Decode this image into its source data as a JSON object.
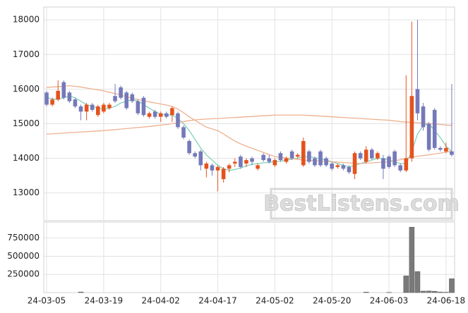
{
  "chart_data": {
    "type": "candlestick",
    "categories": [
      "24-03-05",
      null,
      null,
      null,
      null,
      null,
      null,
      null,
      null,
      null,
      "24-03-19",
      null,
      null,
      null,
      null,
      null,
      null,
      null,
      null,
      null,
      "24-04-02",
      null,
      null,
      null,
      null,
      null,
      null,
      null,
      null,
      null,
      "24-04-17",
      null,
      null,
      null,
      null,
      null,
      null,
      null,
      null,
      null,
      "24-05-02",
      null,
      null,
      null,
      null,
      null,
      null,
      null,
      null,
      null,
      "24-05-20",
      null,
      null,
      null,
      null,
      null,
      null,
      null,
      null,
      null,
      "24-06-03",
      null,
      null,
      null,
      null,
      null,
      null,
      null,
      null,
      null,
      "24-06-18",
      null
    ],
    "open": [
      15900,
      15550,
      15700,
      16200,
      15900,
      15700,
      15500,
      15350,
      15550,
      15250,
      15350,
      15450,
      15800,
      16050,
      15900,
      15850,
      15650,
      15750,
      15200,
      15350,
      15200,
      15300,
      15250,
      15300,
      14900,
      14500,
      14150,
      14200,
      13700,
      13800,
      13650,
      13400,
      13700,
      13850,
      14050,
      13850,
      14000,
      13700,
      14100,
      14000,
      13800,
      14150,
      13900,
      14200,
      14050,
      13800,
      14200,
      14000,
      14200,
      14000,
      13850,
      13750,
      13800,
      13750,
      13550,
      14150,
      13900,
      14250,
      14000,
      14000,
      14050,
      14200,
      13800,
      13650,
      14000,
      16000,
      15500,
      15000,
      15400,
      14300,
      14200,
      14200
    ],
    "high": [
      15950,
      15750,
      16250,
      16250,
      15950,
      15750,
      15550,
      15600,
      15600,
      15550,
      15600,
      15600,
      16150,
      16100,
      15950,
      15900,
      15700,
      15800,
      15350,
      15400,
      15350,
      15350,
      15500,
      15350,
      14950,
      14550,
      14200,
      14250,
      13900,
      13850,
      13800,
      13750,
      13850,
      14000,
      14100,
      14000,
      14050,
      13850,
      14150,
      14100,
      14000,
      14200,
      14050,
      14250,
      14150,
      14600,
      14250,
      14050,
      14250,
      14050,
      13900,
      13850,
      13850,
      13800,
      14200,
      14200,
      14350,
      14300,
      14200,
      14100,
      14100,
      14250,
      13850,
      16400,
      17950,
      18000,
      15600,
      15050,
      15450,
      14350,
      14450,
      16150
    ],
    "low": [
      15500,
      15500,
      15650,
      15700,
      15600,
      15450,
      15100,
      15100,
      15350,
      15200,
      15300,
      15400,
      15600,
      15700,
      15400,
      15600,
      15250,
      15200,
      15150,
      15150,
      15050,
      15150,
      15050,
      14850,
      14550,
      14100,
      14000,
      13650,
      13450,
      13500,
      13050,
      13300,
      13600,
      13750,
      13700,
      13750,
      13800,
      13650,
      13900,
      13850,
      13750,
      13900,
      13850,
      13950,
      14000,
      13750,
      13850,
      13750,
      13750,
      13750,
      13650,
      13700,
      13650,
      13550,
      13400,
      13950,
      13850,
      13950,
      13950,
      13400,
      13700,
      13750,
      13600,
      13600,
      13900,
      15100,
      14800,
      14200,
      14250,
      14200,
      14150,
      14050
    ],
    "close": [
      15550,
      15700,
      15950,
      15750,
      15650,
      15500,
      15350,
      15550,
      15400,
      15500,
      15550,
      15550,
      15650,
      15750,
      15450,
      15650,
      15300,
      15250,
      15300,
      15200,
      15300,
      15200,
      15450,
      14900,
      14600,
      14150,
      14050,
      13800,
      13850,
      13650,
      13750,
      13700,
      13800,
      13900,
      13750,
      13950,
      13900,
      13800,
      13950,
      13900,
      13950,
      13950,
      14000,
      14000,
      14100,
      14500,
      13900,
      13800,
      13800,
      13800,
      13700,
      13800,
      13700,
      13600,
      14150,
      14000,
      14250,
      14000,
      14150,
      13700,
      13750,
      13800,
      13650,
      14000,
      15800,
      15300,
      14900,
      14250,
      14300,
      14250,
      14300,
      14100
    ],
    "up_color": "#e4531d",
    "down_color": "#7479b9",
    "ylim": [
      12200,
      18370
    ],
    "yticks": [
      13000,
      14000,
      15000,
      16000,
      17000,
      18000
    ],
    "grid": true,
    "overlays": [
      {
        "color": "#82d2b8",
        "values": [
          15750,
          15720,
          15700,
          15750,
          15800,
          15750,
          15650,
          15550,
          15500,
          15450,
          15420,
          15450,
          15500,
          15600,
          15650,
          15700,
          15650,
          15550,
          15450,
          15350,
          15280,
          15250,
          15250,
          15150,
          15000,
          14800,
          14550,
          14300,
          14100,
          13950,
          13800,
          13700,
          13650,
          13680,
          13720,
          13780,
          13830,
          13850,
          13870,
          13880,
          13900,
          13920,
          13950,
          13980,
          14000,
          14050,
          14050,
          14020,
          13980,
          13950,
          13900,
          13850,
          13800,
          13750,
          13800,
          13850,
          13900,
          13950,
          14000,
          14000,
          13950,
          13900,
          13850,
          13850,
          14200,
          14700,
          14950,
          15000,
          14800,
          14600,
          14350,
          14200
        ]
      },
      {
        "color": "#eeb08f",
        "values": [
          16050,
          16060,
          16070,
          16080,
          16100,
          16080,
          16060,
          16030,
          16000,
          15980,
          15950,
          15910,
          15870,
          15830,
          15780,
          15740,
          15700,
          15670,
          15630,
          15600,
          15570,
          15540,
          15500,
          15420,
          15320,
          15200,
          15100,
          15000,
          14900,
          14850,
          14800,
          14700,
          14600,
          14500,
          14420,
          14350,
          14290,
          14230,
          14170,
          14110,
          14050,
          14030,
          14010,
          13990,
          13970,
          13950,
          13940,
          13930,
          13920,
          13910,
          13900,
          13890,
          13880,
          13870,
          13860,
          13850,
          13860,
          13870,
          13880,
          13890,
          13900,
          13930,
          13960,
          14000,
          14030,
          14060,
          14080,
          14100,
          14130,
          14150,
          14180,
          14200
        ]
      },
      {
        "color": "#eeb08f",
        "values": [
          14700,
          14710,
          14720,
          14730,
          14740,
          14750,
          14760,
          14770,
          14780,
          14790,
          14800,
          14815,
          14830,
          14845,
          14860,
          14875,
          14890,
          14905,
          14920,
          14940,
          14960,
          14980,
          15000,
          15030,
          15060,
          15090,
          15110,
          15125,
          15135,
          15145,
          15150,
          15160,
          15170,
          15180,
          15190,
          15200,
          15210,
          15220,
          15230,
          15240,
          15250,
          15250,
          15250,
          15250,
          15250,
          15250,
          15240,
          15230,
          15220,
          15210,
          15200,
          15190,
          15180,
          15170,
          15160,
          15150,
          15140,
          15130,
          15120,
          15110,
          15100,
          15080,
          15060,
          15050,
          15040,
          15030,
          15020,
          15000,
          14990,
          14980,
          14960,
          14950
        ]
      }
    ],
    "volume": {
      "color": "#7a7a7a",
      "values": [
        0,
        0,
        0,
        0,
        0,
        0,
        8000,
        0,
        0,
        0,
        0,
        0,
        0,
        0,
        0,
        0,
        0,
        0,
        0,
        0,
        0,
        0,
        0,
        0,
        0,
        0,
        0,
        0,
        0,
        0,
        0,
        0,
        0,
        0,
        0,
        0,
        0,
        0,
        0,
        0,
        0,
        0,
        0,
        0,
        0,
        0,
        0,
        0,
        0,
        0,
        0,
        0,
        0,
        0,
        0,
        0,
        6000,
        0,
        0,
        0,
        3000,
        0,
        0,
        230000,
        900000,
        290000,
        20000,
        22000,
        18000,
        8000,
        5000,
        190000
      ],
      "ylim": [
        0,
        970000
      ],
      "yticks": [
        250000,
        500000,
        750000
      ]
    },
    "watermark": "BestListens.com"
  }
}
